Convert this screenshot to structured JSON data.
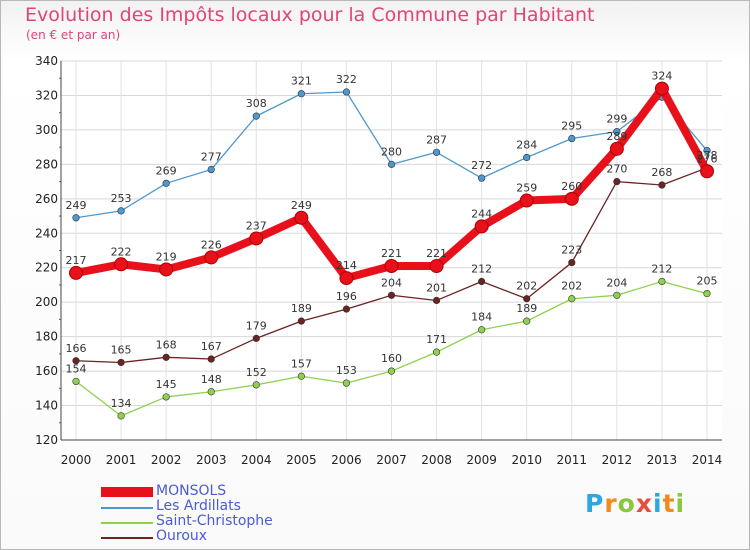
{
  "header": {
    "title": "Evolution des Impôts locaux pour la Commune par Habitant",
    "subtitle": "(en € et par an)"
  },
  "chart_data": {
    "type": "line",
    "title": "Evolution des Impôts locaux pour la Commune par Habitant",
    "subtitle": "(en € et par an)",
    "xlabel": "",
    "ylabel": "",
    "x": [
      "2000",
      "2001",
      "2002",
      "2003",
      "2004",
      "2005",
      "2006",
      "2007",
      "2008",
      "2009",
      "2010",
      "2011",
      "2012",
      "2013",
      "2014"
    ],
    "ylim": [
      120,
      340
    ],
    "yticks": [
      "120",
      "140",
      "160",
      "180",
      "200",
      "220",
      "240",
      "260",
      "280",
      "300",
      "320",
      "340"
    ],
    "grid": true,
    "legend_position": "bottom-left",
    "series": [
      {
        "name": "Les Ardillats",
        "color": "#4f98cf",
        "values": [
          249,
          253,
          269,
          277,
          308,
          321,
          322,
          280,
          287,
          272,
          284,
          295,
          299,
          319,
          288
        ],
        "labels": [
          "249",
          "253",
          "269",
          "277",
          "308",
          "321",
          "322",
          "280",
          "287",
          "272",
          "284",
          "295",
          "299",
          "",
          ""
        ]
      },
      {
        "name": "Saint-Christophe",
        "color": "#8fd14f",
        "values": [
          154,
          134,
          145,
          148,
          152,
          157,
          153,
          160,
          171,
          184,
          189,
          202,
          204,
          212,
          205
        ],
        "labels": [
          "154",
          "134",
          "145",
          "148",
          "152",
          "157",
          "153",
          "160",
          "171",
          "184",
          "189",
          "202",
          "204",
          "212",
          "205"
        ]
      },
      {
        "name": "Ouroux",
        "color": "#6b2323",
        "values": [
          166,
          165,
          168,
          167,
          179,
          189,
          196,
          204,
          201,
          212,
          202,
          223,
          270,
          268,
          278
        ],
        "labels": [
          "166",
          "165",
          "168",
          "167",
          "179",
          "189",
          "196",
          "204",
          "201",
          "212",
          "202",
          "223",
          "270",
          "268",
          "278"
        ]
      },
      {
        "name": "MONSOLS",
        "color": "#e8101a",
        "values": [
          217,
          222,
          219,
          226,
          237,
          249,
          214,
          221,
          221,
          244,
          259,
          260,
          289,
          324,
          276
        ],
        "labels": [
          "217",
          "222",
          "219",
          "226",
          "237",
          "249",
          "214",
          "221",
          "221",
          "244",
          "259",
          "260",
          "289",
          "324",
          "276"
        ]
      }
    ],
    "legend_order": [
      "MONSOLS",
      "Les Ardillats",
      "Saint-Christophe",
      "Ouroux"
    ]
  },
  "legend": {
    "items": [
      {
        "label": "MONSOLS",
        "color": "#e8101a"
      },
      {
        "label": "Les Ardillats",
        "color": "#4f98cf"
      },
      {
        "label": "Saint-Christophe",
        "color": "#8fd14f"
      },
      {
        "label": "Ouroux",
        "color": "#6b2323"
      }
    ]
  },
  "logo": {
    "letters": [
      "P",
      "r",
      "o",
      "x",
      "i",
      "t",
      "i"
    ],
    "colors": [
      "#2aa8e0",
      "#f08a1c",
      "#8cc63f",
      "#e84c3d",
      "#2aa8e0",
      "#f08a1c",
      "#8cc63f"
    ]
  }
}
